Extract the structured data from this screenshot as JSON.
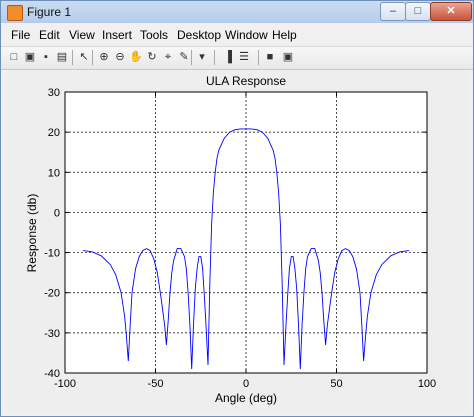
{
  "window": {
    "title": "Figure 1",
    "minimize": "–",
    "maximize": "□",
    "close": "✕"
  },
  "menu": [
    "File",
    "Edit",
    "View",
    "Insert",
    "Tools",
    "Desktop",
    "Window",
    "Help"
  ],
  "toolbar": {
    "icons": [
      "new-figure-icon",
      "open-file-icon",
      "save-icon",
      "print-icon",
      "edit-plot-arrow-icon",
      "zoom-in-icon",
      "zoom-out-icon",
      "pan-icon",
      "rotate-3d-icon",
      "data-cursor-icon",
      "brush-icon",
      "link-plot-icon",
      "insert-colorbar-icon",
      "insert-legend-icon",
      "hide-plot-tools-icon",
      "show-plot-tools-icon"
    ],
    "glyphs": [
      "□",
      "▣",
      "▪",
      "▤",
      "↖",
      "⊕",
      "⊖",
      "✋",
      "↻",
      "⌖",
      "✎",
      "▾",
      "▐",
      "☰",
      "■",
      "▣"
    ]
  },
  "chart_data": {
    "type": "line",
    "title": "ULA Response",
    "xlabel": "Angle (deg)",
    "ylabel": "Response (db)",
    "xlim": [
      -100,
      100
    ],
    "ylim": [
      -40,
      30
    ],
    "xticks": [
      -100,
      -50,
      0,
      50,
      100
    ],
    "yticks": [
      -40,
      -30,
      -20,
      -10,
      0,
      10,
      20,
      30
    ],
    "grid": true,
    "line_color": "#0000ff",
    "series": [
      {
        "x": [
          -90,
          -85,
          -80,
          -75,
          -72,
          -69,
          -67,
          -66,
          -65,
          -64,
          -63,
          -61,
          -59,
          -57,
          -55,
          -53,
          -51,
          -49,
          -47,
          -45,
          -44,
          -43,
          -42,
          -41,
          -40,
          -38,
          -36,
          -34,
          -33,
          -32,
          -31,
          -30,
          -29,
          -28,
          -27,
          -26,
          -25,
          -24,
          -23,
          -22,
          -21,
          -20,
          -19,
          -18,
          -17,
          -16,
          -15,
          -12,
          -9,
          -6,
          -3,
          0,
          3,
          6,
          9,
          12,
          15,
          16,
          17,
          18,
          19,
          20,
          21,
          22,
          23,
          24,
          25,
          26,
          27,
          28,
          29,
          30,
          31,
          32,
          33,
          34,
          36,
          38,
          40,
          41,
          42,
          43,
          44,
          45,
          47,
          49,
          51,
          53,
          55,
          57,
          59,
          61,
          63,
          64,
          65,
          66,
          67,
          69,
          72,
          75,
          80,
          85,
          90
        ],
        "y": [
          -9.5,
          -9.8,
          -10.8,
          -13,
          -15.5,
          -20,
          -26,
          -31,
          -37,
          -28,
          -20,
          -14,
          -11,
          -9.5,
          -9,
          -9.5,
          -11.5,
          -15,
          -21,
          -28,
          -33,
          -27,
          -20,
          -15,
          -12,
          -9,
          -9,
          -11,
          -14,
          -20,
          -28,
          -39,
          -28,
          -19,
          -14,
          -11,
          -11,
          -14,
          -21,
          -29,
          -38,
          -18,
          -3,
          5,
          10,
          13.5,
          15.5,
          18.5,
          20,
          20.6,
          20.8,
          20.8,
          20.8,
          20.6,
          20,
          18.5,
          15.5,
          13.5,
          10,
          5,
          -3,
          -18,
          -38,
          -29,
          -21,
          -14,
          -11,
          -11,
          -14,
          -19,
          -28,
          -39,
          -28,
          -20,
          -14,
          -11,
          -9,
          -9,
          -12,
          -15,
          -20,
          -27,
          -33,
          -28,
          -21,
          -15,
          -11.5,
          -9.5,
          -9,
          -9.5,
          -11,
          -14,
          -20,
          -28,
          -37,
          -31,
          -26,
          -20,
          -15.5,
          -13,
          -10.8,
          -9.8,
          -9.5
        ]
      }
    ]
  }
}
